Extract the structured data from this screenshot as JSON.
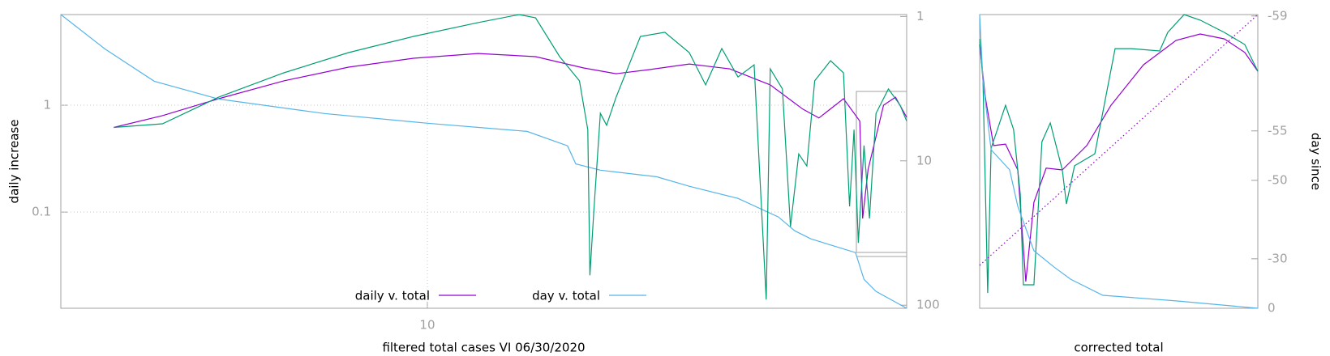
{
  "chart_data": [
    {
      "type": "line",
      "xlabel": "filtered total cases VI 06/30/2020",
      "ylabel": "daily increase",
      "xlog": true,
      "ylog": true,
      "y2log": true,
      "y2reversed": true,
      "grid": true,
      "xlim": [
        1.2,
        160
      ],
      "xticks": [
        10
      ],
      "ylim": [
        0.0126,
        7.05
      ],
      "yticks": [
        0.1,
        1
      ],
      "y2lim": [
        0.97,
        105
      ],
      "y2ticks": [
        1,
        10,
        100
      ],
      "legend": "bottom",
      "series": [
        {
          "name": "daily v. total",
          "color": "#9400d3",
          "x": [
            1.63,
            2.16,
            2.99,
            4.36,
            6.34,
            9.23,
            13.4,
            18.7,
            24.7,
            29.8,
            36.0,
            45.5,
            57.5,
            72.7,
            87.7,
            96.3,
            111,
            122,
            124,
            128,
            140,
            150,
            160
          ],
          "values": [
            0.62,
            0.8,
            1.15,
            1.69,
            2.27,
            2.75,
            3.05,
            2.85,
            2.23,
            1.97,
            2.15,
            2.43,
            2.19,
            1.55,
            0.92,
            0.76,
            1.15,
            0.71,
            0.087,
            0.25,
            1.0,
            1.19,
            0.77
          ]
        },
        {
          "name": "day v. total",
          "color": "#56b4e9",
          "axis": "y2",
          "x": [
            1.2,
            1.55,
            2.06,
            2.99,
            5.51,
            10,
            17.8,
            22.5,
            23.6,
            27.2,
            37.7,
            45.5,
            60.3,
            76.2,
            83.7,
            91.9,
            119,
            125,
            134,
            160
          ],
          "values": [
            0.97,
            1.68,
            2.81,
            3.73,
            4.7,
            5.49,
            6.25,
            7.87,
            10.5,
            11.6,
            12.9,
            15.0,
            18.2,
            24.5,
            30.5,
            34.7,
            43.2,
            66.2,
            80.3,
            105
          ]
        },
        {
          "color": "#009e73",
          "x": [
            1.63,
            2.16,
            2.99,
            4.36,
            6.34,
            9.23,
            13.4,
            17.0,
            18.7,
            21.5,
            24.1,
            25.3,
            25.6,
            26.2,
            27.2,
            28.2,
            29.8,
            34.3,
            39.5,
            45.5,
            50.0,
            54.9,
            60.3,
            66.2,
            71.0,
            72.7,
            78.0,
            81.7,
            85.7,
            89.8,
            94.0,
            103,
            111,
            115,
            118,
            121,
            125,
            129,
            134,
            144,
            154,
            160
          ],
          "values": [
            0.62,
            0.67,
            1.19,
            2.01,
            3.11,
            4.4,
            5.93,
            7.05,
            6.58,
            2.85,
            1.69,
            0.59,
            0.0256,
            0.104,
            0.84,
            0.65,
            1.19,
            4.4,
            4.81,
            3.11,
            1.55,
            3.39,
            1.84,
            2.39,
            0.0152,
            2.19,
            1.42,
            0.073,
            0.35,
            0.27,
            1.69,
            2.61,
            2.01,
            0.113,
            0.59,
            0.0515,
            0.42,
            0.087,
            0.84,
            1.42,
            1.0,
            0.71
          ]
        }
      ]
    },
    {
      "type": "line",
      "xlabel": "corrected total",
      "y2label": "day since",
      "xlim": [
        0,
        100
      ],
      "ylim": [
        0,
        100
      ],
      "y2log": true,
      "y2log_offset": 60,
      "y2reversed": true,
      "y2lim": [
        -59.02,
        0
      ],
      "y2ticks": [
        -59,
        -55,
        -50,
        -30,
        0
      ],
      "series": [
        {
          "color": "#9400d3",
          "x": [
            0,
            2.0,
            5.0,
            9.3,
            13.7,
            16.6,
            19.5,
            23.9,
            29.7,
            38.5,
            47.2,
            58.9,
            70.6,
            79.3,
            88.0,
            95.3,
            100
          ],
          "values": [
            89.8,
            71.9,
            55.4,
            55.9,
            47.1,
            9.1,
            36.1,
            47.7,
            47.1,
            55.4,
            69.1,
            82.9,
            91.2,
            93.4,
            91.7,
            87.1,
            80.7
          ]
        },
        {
          "color": "#009e73",
          "x": [
            0,
            1.2,
            2.9,
            4.1,
            9.3,
            12.2,
            14.6,
            15.7,
            19.5,
            22.4,
            25.4,
            29.7,
            31.2,
            34.1,
            41.4,
            48.7,
            54.5,
            64.7,
            67.6,
            73.5,
            79.3,
            88.0,
            95.3,
            100
          ],
          "values": [
            91.7,
            77.4,
            5.2,
            54.5,
            69.1,
            60.9,
            38.8,
            8.0,
            8.0,
            56.7,
            63.1,
            47.1,
            35.5,
            48.5,
            52.6,
            88.4,
            88.4,
            87.6,
            93.9,
            100,
            98.1,
            93.9,
            89.8,
            80.7
          ]
        },
        {
          "color": "#56b4e9",
          "x": [
            0,
            1.2,
            4.1,
            10.8,
            13.7,
            19.5,
            26.8,
            32.7,
            44.3,
            70.6,
            100
          ],
          "values": [
            100,
            77.4,
            54.0,
            47.1,
            34.7,
            19.6,
            14.0,
            9.9,
            4.4,
            2.5,
            0
          ]
        },
        {
          "color": "#9400d3",
          "dash": true,
          "x": [
            0,
            100
          ],
          "values": [
            14.6,
            100
          ]
        }
      ]
    }
  ]
}
